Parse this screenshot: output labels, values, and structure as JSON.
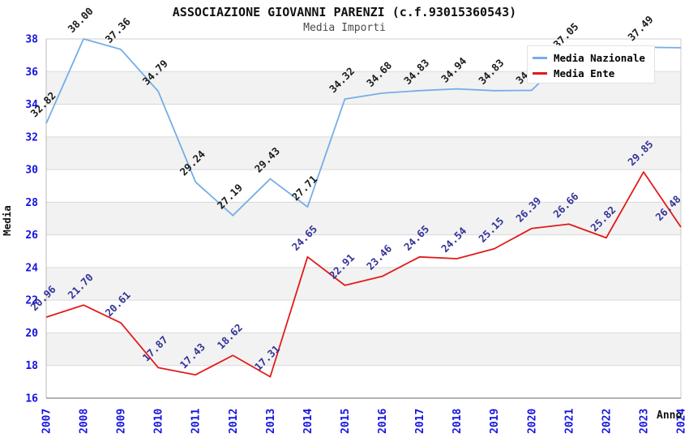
{
  "title": "ASSOCIAZIONE GIOVANNI PARENZI (c.f.93015360543)",
  "subtitle": "Media Importi",
  "legend": {
    "items": [
      {
        "label": "Media Nazionale",
        "color": "#76ade8"
      },
      {
        "label": "Media Ente",
        "color": "#e11b1b"
      }
    ]
  },
  "y_axis": {
    "title": "Media"
  },
  "x_axis": {
    "title": "Anno"
  },
  "colors": {
    "band_gray": "#f2f2f2",
    "grid_line": "#d9d9d9",
    "plot_border": "#cccccc",
    "left_axis": "#bbbbbb",
    "bottom_axis": "#666666",
    "tick_label": "#1414e0",
    "axis_title": "#111111"
  },
  "chart_data": {
    "type": "line",
    "title": "ASSOCIAZIONE GIOVANNI PARENZI (c.f.93015360543)",
    "subtitle": "Media Importi",
    "xlabel": "Anno",
    "ylabel": "Media",
    "x": [
      "2007",
      "2008",
      "2009",
      "2010",
      "2011",
      "2012",
      "2013",
      "2014",
      "2015",
      "2016",
      "2017",
      "2018",
      "2019",
      "2020",
      "2021",
      "2022",
      "2023",
      "2024"
    ],
    "ylim": [
      16,
      38
    ],
    "y_ticks": [
      16,
      18,
      20,
      22,
      24,
      26,
      28,
      30,
      32,
      34,
      36,
      38
    ],
    "grid": true,
    "alternating_bands": true,
    "legend_position": "top-right",
    "series": [
      {
        "name": "Media Nazionale",
        "color": "#76ade8",
        "label_color": "#1b1b1b",
        "values": [
          32.82,
          38.0,
          37.36,
          34.79,
          29.24,
          27.19,
          29.43,
          27.71,
          34.32,
          34.68,
          34.83,
          34.94,
          34.83,
          34.85,
          37.05,
          35.46,
          37.49,
          37.46
        ],
        "hidden_label_indices": [
          15,
          17
        ]
      },
      {
        "name": "Media Ente",
        "color": "#e11b1b",
        "label_color": "#333399",
        "values": [
          20.96,
          21.7,
          20.61,
          17.87,
          17.43,
          18.62,
          17.31,
          24.65,
          22.91,
          23.46,
          24.65,
          24.54,
          25.15,
          26.39,
          26.66,
          25.82,
          29.85,
          26.48
        ],
        "hidden_label_indices": []
      }
    ]
  }
}
